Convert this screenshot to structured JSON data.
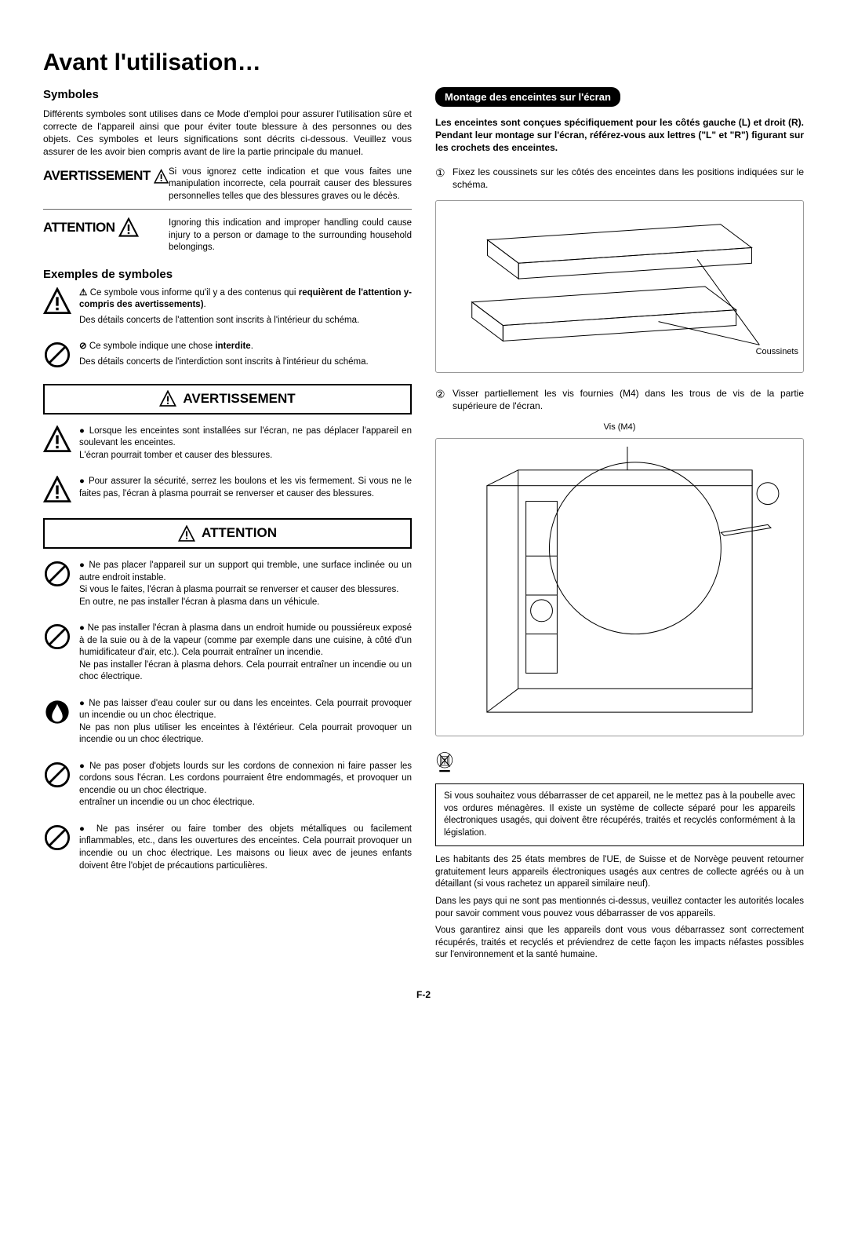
{
  "page": {
    "title": "Avant l'utilisation…",
    "number": "F-2"
  },
  "left": {
    "symboles_heading": "Symboles",
    "symboles_intro": "Différents symboles sont utilises dans ce Mode d'emploi pour assurer l'utilisation sûre et correcte de l'appareil ainsi que pour éviter toute blessure à des personnes ou des objets. Ces symboles et leurs significations sont décrits ci-dessous. Veuillez vous assurer de les avoir bien compris avant de lire la partie principale du manuel.",
    "defs": {
      "avertissement_term": "AVERTISSEMENT",
      "avertissement_desc": "Si vous ignorez cette indication et que vous faites une manipulation incorrecte, cela pourrait causer des blessures personnelles telles que des blessures graves ou le décès.",
      "attention_term": "ATTENTION",
      "attention_desc": "Ignoring this indication and improper handling could cause injury to a person or damage to the surrounding household belongings."
    },
    "examples_heading": "Exemples de symboles",
    "example1_lead": "Ce symbole vous informe qu'il y a des contenus qui ",
    "example1_bold": "requièrent de l'attention y-compris des avertissements)",
    "example1_tail": ".",
    "example1_sub": "Des détails concerts de l'attention sont inscrits à l'intérieur du schéma.",
    "example2_lead": "Ce symbole indique une chose ",
    "example2_bold": "interdite",
    "example2_tail": ".",
    "example2_sub": "Des détails concerts de l'interdiction sont inscrits à l'intérieur du schéma.",
    "avert_title": "AVERTISSEMENT",
    "avert_items": [
      "Lorsque les enceintes sont installées sur l'écran, ne pas déplacer l'appareil en soulevant les enceintes.\nL'écran pourrait tomber et causer des blessures.",
      "Pour assurer la sécurité, serrez les boulons et les vis fermement. Si vous ne le faites pas, l'écran à plasma pourrait se renverser et causer des blessures."
    ],
    "att_title": "ATTENTION",
    "att_items": [
      "Ne pas placer l'appareil sur un support qui tremble, une surface inclinée ou un autre endroit instable.\nSi vous le faites, l'écran à plasma pourrait se renverser et causer des blessures.\nEn outre, ne pas installer l'écran à plasma dans un véhicule.",
      "Ne pas installer l'écran à plasma dans un endroit humide ou poussiéreux exposé à de la suie ou à de la vapeur (comme par exemple dans une cuisine, à côté d'un humidificateur d'air, etc.). Cela pourrait entraîner un incendie.\nNe pas installer l'écran à plasma dehors. Cela pourrait entraîner un incendie ou un choc électrique.",
      "Ne pas laisser d'eau couler sur ou dans les enceintes. Cela pourrait provoquer un incendie ou un choc électrique.\nNe pas non plus utiliser les enceintes à l'éxtérieur. Cela pourrait provoquer un incendie ou un choc électrique.",
      "Ne pas poser d'objets lourds sur les cordons de connexion ni faire passer les cordons sous l'écran. Les cordons pourraient être endommagés, et provoquer un encendie ou un choc électrique.\nentraîner un incendie ou un choc électrique.",
      "Ne pas insérer ou faire tomber des objets métalliques ou facilement inflammables, etc., dans les ouvertures des enceintes. Cela pourrait provoquer un incendie ou un choc électrique. Les maisons ou lieux avec de jeunes enfants doivent être l'objet de précautions particulières."
    ]
  },
  "right": {
    "bar_heading": "Montage des enceintes sur l'écran",
    "bold_intro": "Les enceintes sont conçues spécifiquement pour les côtés gauche (L) et droit (R). Pendant leur montage sur l'écran, référez-vous aux lettres (\"L\" et \"R\") figurant sur les crochets des enceintes.",
    "step1": "Fixez les coussinets sur les côtés des enceintes dans les positions indiquées sur le schéma.",
    "diagram1_label": "Coussinets",
    "step2": "Visser partiellement les vis fournies (M4) dans les trous de vis de la partie supérieure de l'écran.",
    "diagram2_label": "Vis (M4)",
    "disposal_box": "Si vous souhaitez vous débarrasser de cet appareil, ne le mettez pas à la poubelle avec vos ordures ménagères. Il existe un système de collecte séparé pour les appareils électroniques usagés, qui doivent être récupérés, traités et recyclés conformément à la législation.",
    "after1": "Les habitants des 25 états membres de l'UE, de Suisse et de Norvège peuvent retourner gratuitement leurs appareils électroniques usagés aux centres de collecte agréés ou à un détaillant (si vous rachetez un appareil similaire neuf).",
    "after2": "Dans les pays qui ne sont pas mentionnés ci-dessus, veuillez contacter les autorités locales pour savoir comment vous pouvez vous débarrasser de vos appareils.",
    "after3": "Vous garantirez ainsi que les appareils dont vous vous débarrassez sont correctement récupérés, traités et recyclés et préviendrez de cette façon les impacts néfastes possibles sur l'environnement et la santé humaine."
  },
  "icons": {
    "triangle_exclaim": "warning-triangle",
    "prohibit": "no-entry-circle",
    "water_prohibit": "no-water",
    "weee": "crossed-bin"
  }
}
